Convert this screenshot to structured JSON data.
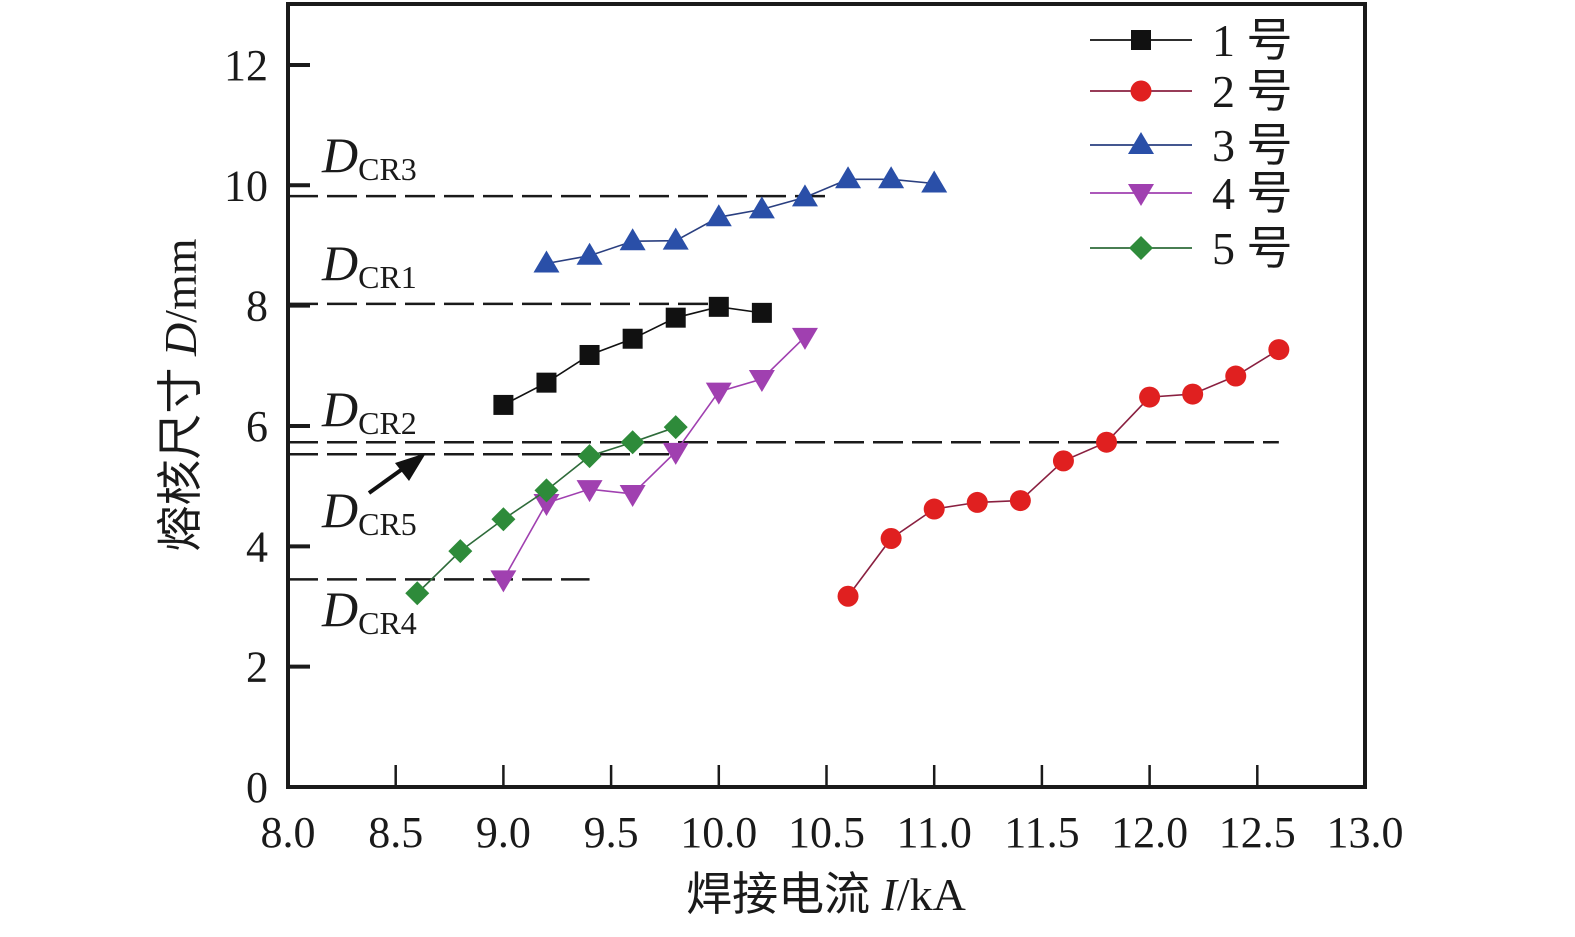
{
  "chart_data": {
    "type": "line",
    "title": "",
    "xlabel_prefix": "焊接电流 ",
    "xlabel_var": "I",
    "xlabel_unit": "/kA",
    "ylabel_prefix": "熔核尺寸 ",
    "ylabel_var": "D",
    "ylabel_unit": "/mm",
    "xlim": [
      8.0,
      13.0
    ],
    "ylim": [
      0,
      13
    ],
    "xticks": [
      "8.0",
      "8.5",
      "9.0",
      "9.5",
      "10.0",
      "10.5",
      "11.0",
      "11.5",
      "12.0",
      "12.5",
      "13.0"
    ],
    "xtick_values": [
      8.0,
      8.5,
      9.0,
      9.5,
      10.0,
      10.5,
      11.0,
      11.5,
      12.0,
      12.5,
      13.0
    ],
    "yticks": [
      "0",
      "2",
      "4",
      "6",
      "8",
      "10",
      "12"
    ],
    "ytick_values": [
      0,
      2,
      4,
      6,
      8,
      10,
      12
    ],
    "grid": false,
    "legend_position": "top-right",
    "series": [
      {
        "name": "1 号",
        "marker": "square",
        "color": "#111111",
        "line_color": "#111111",
        "x": [
          9.0,
          9.2,
          9.4,
          9.6,
          9.8,
          10.0,
          10.2
        ],
        "y": [
          6.35,
          6.72,
          7.18,
          7.45,
          7.8,
          7.98,
          7.88
        ]
      },
      {
        "name": "2 号",
        "marker": "circle",
        "color": "#e02020",
        "line_color": "#8a2040",
        "x": [
          10.6,
          10.8,
          11.0,
          11.2,
          11.4,
          11.6,
          11.8,
          12.0,
          12.2,
          12.4,
          12.6
        ],
        "y": [
          3.17,
          4.13,
          4.62,
          4.73,
          4.76,
          5.42,
          5.73,
          6.48,
          6.53,
          6.83,
          7.27
        ]
      },
      {
        "name": "3 号",
        "marker": "triangle-up",
        "color": "#2a4fa8",
        "line_color": "#2a3f80",
        "x": [
          9.2,
          9.4,
          9.6,
          9.8,
          10.0,
          10.2,
          10.4,
          10.6,
          10.8,
          11.0
        ],
        "y": [
          8.7,
          8.83,
          9.07,
          9.08,
          9.47,
          9.6,
          9.8,
          10.1,
          10.1,
          10.03
        ]
      },
      {
        "name": "4 号",
        "marker": "triangle-down",
        "color": "#a040b0",
        "line_color": "#a040b0",
        "x": [
          9.0,
          9.2,
          9.4,
          9.6,
          9.8,
          10.0,
          10.2,
          10.4
        ],
        "y": [
          3.45,
          4.72,
          4.95,
          4.87,
          5.57,
          6.57,
          6.78,
          7.48
        ]
      },
      {
        "name": "5 号",
        "marker": "diamond",
        "color": "#2e8b3a",
        "line_color": "#2e6b3a",
        "x": [
          8.6,
          8.8,
          9.0,
          9.2,
          9.4,
          9.6,
          9.8
        ],
        "y": [
          3.22,
          3.92,
          4.45,
          4.93,
          5.5,
          5.73,
          5.98
        ]
      }
    ],
    "reference_lines": [
      {
        "label_main": "D",
        "label_sub": "CR3",
        "y": 9.82,
        "x_start": 8.0,
        "x_end": 10.5
      },
      {
        "label_main": "D",
        "label_sub": "CR1",
        "y": 8.03,
        "x_start": 8.0,
        "x_end": 10.0
      },
      {
        "label_main": "D",
        "label_sub": "CR2",
        "y": 5.73,
        "x_start": 8.0,
        "x_end": 12.6
      },
      {
        "label_main": "D",
        "label_sub": "CR5",
        "y": 5.53,
        "x_start": 8.0,
        "x_end": 9.8
      },
      {
        "label_main": "D",
        "label_sub": "CR4",
        "y": 3.45,
        "x_start": 8.0,
        "x_end": 9.4
      }
    ]
  }
}
